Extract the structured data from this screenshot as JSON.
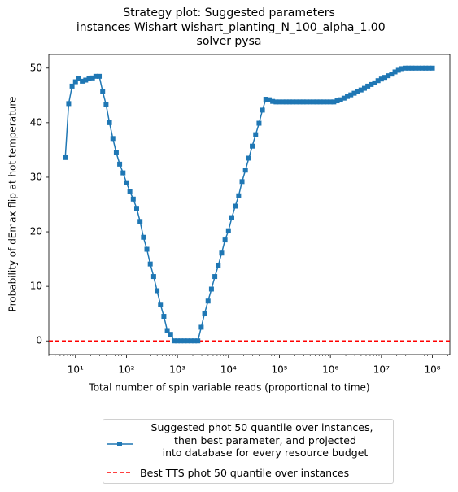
{
  "chart_data": {
    "type": "line",
    "title": "Strategy plot: Suggested parameters\n instances Wishart wishart_planting_N_100_alpha_1.00\nsolver pysa",
    "xlabel": "Total number of spin variable reads (proportional to time)",
    "ylabel": "Probability of dEmax flip at hot temperature",
    "xscale": "log",
    "xlim": [
      3,
      220000000
    ],
    "ylim": [
      -2.5,
      52.5
    ],
    "xticks": [
      {
        "value": 10,
        "label": "10¹"
      },
      {
        "value": 100,
        "label": "10²"
      },
      {
        "value": 1000,
        "label": "10³"
      },
      {
        "value": 10000,
        "label": "10⁴"
      },
      {
        "value": 100000,
        "label": "10⁵"
      },
      {
        "value": 1000000,
        "label": "10⁶"
      },
      {
        "value": 10000000,
        "label": "10⁷"
      },
      {
        "value": 100000000,
        "label": "10⁸"
      }
    ],
    "yticks": [
      0,
      10,
      20,
      30,
      40,
      50
    ],
    "grid": false,
    "legend": "below",
    "x": [
      6.31,
      7.356,
      8.577,
      10,
      11.66,
      13.59,
      15.85,
      18.48,
      21.54,
      25.12,
      29.29,
      34.15,
      39.81,
      46.42,
      54.12,
      63.1,
      73.56,
      85.77,
      100,
      116.6,
      135.9,
      158.5,
      184.8,
      215.4,
      251.2,
      292.9,
      341.5,
      398.1,
      464.2,
      541.2,
      631,
      735.6,
      857.7,
      1000,
      1166,
      1359,
      1585,
      1848,
      2154,
      2512,
      2929,
      3415,
      3981,
      4642,
      5412,
      6310,
      7356,
      8577,
      10000,
      11660,
      13590,
      15850,
      18480,
      21540,
      25120,
      29290,
      34150,
      39810,
      46420,
      54120,
      63100,
      73560,
      85770,
      100000,
      116600,
      135900,
      158500,
      184800,
      215400,
      251200,
      292900,
      341500,
      398100,
      464200,
      541200,
      631000,
      735600,
      857700,
      1000000,
      1166000,
      1359000,
      1585000,
      1848000,
      2154000,
      2512000,
      2929000,
      3415000,
      3981000,
      4642000,
      5412000,
      6310000,
      7356000,
      8577000,
      10000000,
      11660000,
      13590000,
      15850000,
      18480000,
      21540000,
      25120000,
      29290000,
      34150000,
      39810000,
      46420000,
      54120000,
      63100000,
      73560000,
      85770000,
      100000000
    ],
    "series": [
      {
        "name": "Suggested phot 50 quantile over instances,\n  then best parameter, and projected\n  into database for every resource budget",
        "color": "#1f77b4",
        "marker": "square",
        "values": [
          33.6,
          43.5,
          46.7,
          47.5,
          48.1,
          47.6,
          47.8,
          48.1,
          48.2,
          48.5,
          48.5,
          45.7,
          43.3,
          40.0,
          37.1,
          34.5,
          32.4,
          30.8,
          29.0,
          27.4,
          26.0,
          24.3,
          21.9,
          19.0,
          16.8,
          14.1,
          11.8,
          9.2,
          6.7,
          4.5,
          1.9,
          1.2,
          0,
          0,
          0,
          0,
          0,
          0,
          0,
          0,
          2.5,
          5.1,
          7.3,
          9.5,
          11.8,
          13.8,
          16.1,
          18.5,
          20.2,
          22.6,
          24.7,
          26.6,
          29.2,
          31.3,
          33.5,
          35.7,
          37.8,
          39.9,
          42.3,
          44.3,
          44.2,
          43.9,
          43.8,
          43.8,
          43.8,
          43.8,
          43.8,
          43.8,
          43.8,
          43.8,
          43.8,
          43.8,
          43.8,
          43.8,
          43.8,
          43.8,
          43.8,
          43.8,
          43.8,
          43.8,
          44.0,
          44.2,
          44.5,
          44.8,
          45.1,
          45.4,
          45.7,
          46.0,
          46.3,
          46.7,
          47.0,
          47.3,
          47.7,
          48.0,
          48.3,
          48.6,
          48.9,
          49.3,
          49.6,
          49.9,
          50.0,
          50.0,
          50.0,
          50.0,
          50.0,
          50.0,
          50.0,
          50.0,
          50.0
        ]
      }
    ],
    "hlines": [
      {
        "name": "Best TTS phot 50 quantile over instances",
        "color": "#ff0000",
        "value": 0,
        "style": "dashed"
      }
    ]
  }
}
